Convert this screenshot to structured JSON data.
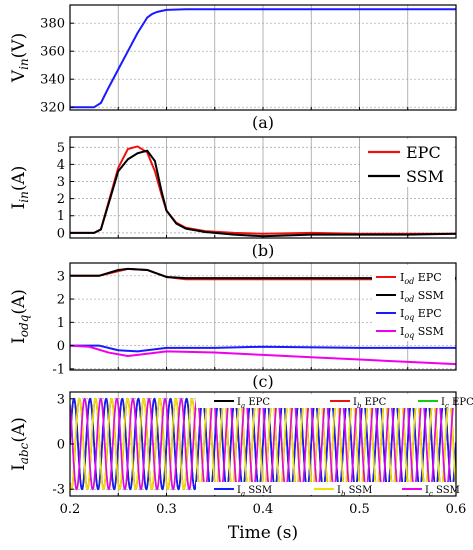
{
  "chart_data": [
    {
      "type": "line",
      "panel_label": "(a)",
      "ylabel": "V",
      "ylabel_sub": "in",
      "ylabel_unit": "(V)",
      "ylim": [
        318,
        393
      ],
      "yticks": [
        320,
        340,
        360,
        380
      ],
      "xlim": [
        0.2,
        0.6
      ],
      "series": [
        {
          "color": "#1a1aff",
          "x": [
            0.2,
            0.225,
            0.232,
            0.24,
            0.25,
            0.26,
            0.27,
            0.28,
            0.285,
            0.29,
            0.3,
            0.32,
            0.35,
            0.6
          ],
          "y": [
            320,
            320,
            323,
            334,
            347,
            360,
            373,
            384,
            386.5,
            388,
            389.5,
            390,
            390,
            390
          ]
        }
      ]
    },
    {
      "type": "line",
      "panel_label": "(b)",
      "ylabel": "I",
      "ylabel_sub": "in",
      "ylabel_unit": "(A)",
      "ylim": [
        -0.3,
        5.6
      ],
      "yticks": [
        0,
        1,
        2,
        3,
        4,
        5
      ],
      "xlim": [
        0.2,
        0.6
      ],
      "legend": [
        "EPC",
        "SSM"
      ],
      "series": [
        {
          "name": "EPC",
          "color": "#ee1111",
          "x": [
            0.2,
            0.225,
            0.232,
            0.24,
            0.25,
            0.26,
            0.27,
            0.28,
            0.288,
            0.295,
            0.3,
            0.31,
            0.32,
            0.34,
            0.37,
            0.4,
            0.45,
            0.5,
            0.55,
            0.6
          ],
          "y": [
            0,
            0,
            0.2,
            1.8,
            3.8,
            4.9,
            5.05,
            4.7,
            3.6,
            2.2,
            1.3,
            0.6,
            0.3,
            0.1,
            0,
            -0.05,
            0,
            -0.05,
            -0.05,
            -0.05
          ]
        },
        {
          "name": "SSM",
          "color": "#000000",
          "x": [
            0.2,
            0.225,
            0.232,
            0.24,
            0.25,
            0.26,
            0.27,
            0.28,
            0.288,
            0.295,
            0.3,
            0.31,
            0.32,
            0.34,
            0.37,
            0.4,
            0.45,
            0.5,
            0.55,
            0.6
          ],
          "y": [
            0,
            0,
            0.2,
            1.7,
            3.6,
            4.3,
            4.65,
            4.8,
            4.2,
            2.4,
            1.3,
            0.55,
            0.25,
            0.05,
            -0.1,
            -0.2,
            -0.1,
            -0.1,
            -0.1,
            -0.05
          ]
        }
      ]
    },
    {
      "type": "line",
      "panel_label": "(c)",
      "ylabel": "I",
      "ylabel_sub": "odq",
      "ylabel_unit": "(A)",
      "ylim": [
        -1.05,
        3.55
      ],
      "yticks": [
        -1,
        0,
        1,
        2,
        3
      ],
      "xlim": [
        0.2,
        0.6
      ],
      "legend": [
        {
          "main": "I",
          "sub": "od",
          "suffix": "EPC"
        },
        {
          "main": "I",
          "sub": "od",
          "suffix": "SSM"
        },
        {
          "main": "I",
          "sub": "oq",
          "suffix": "EPC"
        },
        {
          "main": "I",
          "sub": "oq",
          "suffix": "SSM"
        }
      ],
      "series": [
        {
          "color": "#ee1111",
          "x": [
            0.2,
            0.23,
            0.25,
            0.26,
            0.28,
            0.3,
            0.32,
            0.35,
            0.4,
            0.5,
            0.6
          ],
          "y": [
            3.0,
            3.0,
            3.2,
            3.3,
            3.25,
            2.95,
            2.85,
            2.85,
            2.85,
            2.85,
            2.85
          ]
        },
        {
          "color": "#000000",
          "x": [
            0.2,
            0.23,
            0.25,
            0.26,
            0.28,
            0.3,
            0.32,
            0.35,
            0.4,
            0.5,
            0.6
          ],
          "y": [
            3.0,
            3.0,
            3.25,
            3.3,
            3.25,
            2.95,
            2.9,
            2.9,
            2.9,
            2.9,
            2.9
          ]
        },
        {
          "color": "#1a1aff",
          "x": [
            0.2,
            0.23,
            0.25,
            0.27,
            0.3,
            0.35,
            0.4,
            0.5,
            0.6
          ],
          "y": [
            0,
            0,
            -0.2,
            -0.25,
            -0.1,
            -0.1,
            -0.05,
            -0.1,
            -0.1
          ]
        },
        {
          "color": "#ee00ee",
          "x": [
            0.2,
            0.22,
            0.24,
            0.26,
            0.28,
            0.3,
            0.35,
            0.4,
            0.45,
            0.5,
            0.55,
            0.6
          ],
          "y": [
            0,
            -0.05,
            -0.3,
            -0.45,
            -0.35,
            -0.25,
            -0.3,
            -0.4,
            -0.5,
            -0.6,
            -0.7,
            -0.8
          ]
        }
      ]
    },
    {
      "type": "line",
      "panel_label": "",
      "ylabel": "I",
      "ylabel_sub": "abc",
      "ylabel_unit": "(A)",
      "ylim": [
        -3.45,
        3.45
      ],
      "yticks": [
        -3,
        0,
        3
      ],
      "xlim": [
        0.2,
        0.6
      ],
      "xlabel": "Time (s)",
      "xticks": [
        0.2,
        0.3,
        0.4,
        0.5,
        0.6
      ],
      "frequency_hz": 60,
      "amplitude": 3,
      "legend_top": [
        {
          "main": "I",
          "sub": "a",
          "suffix": "EPC"
        },
        {
          "main": "I",
          "sub": "b",
          "suffix": "EPC"
        },
        {
          "main": "I",
          "sub": "c",
          "suffix": "EPC"
        }
      ],
      "legend_bottom": [
        {
          "main": "I",
          "sub": "a",
          "suffix": "SSM"
        },
        {
          "main": "I",
          "sub": "b",
          "suffix": "SSM"
        },
        {
          "main": "I",
          "sub": "c",
          "suffix": "SSM"
        }
      ],
      "series": [
        {
          "color": "#000000",
          "phase_deg": 0
        },
        {
          "color": "#ee1111",
          "phase_deg": -120
        },
        {
          "color": "#11cc11",
          "phase_deg": 120
        },
        {
          "color": "#1a1aff",
          "phase_deg": 3
        },
        {
          "color": "#e6e600",
          "phase_deg": -117
        },
        {
          "color": "#ee00ee",
          "phase_deg": 123
        }
      ]
    }
  ]
}
